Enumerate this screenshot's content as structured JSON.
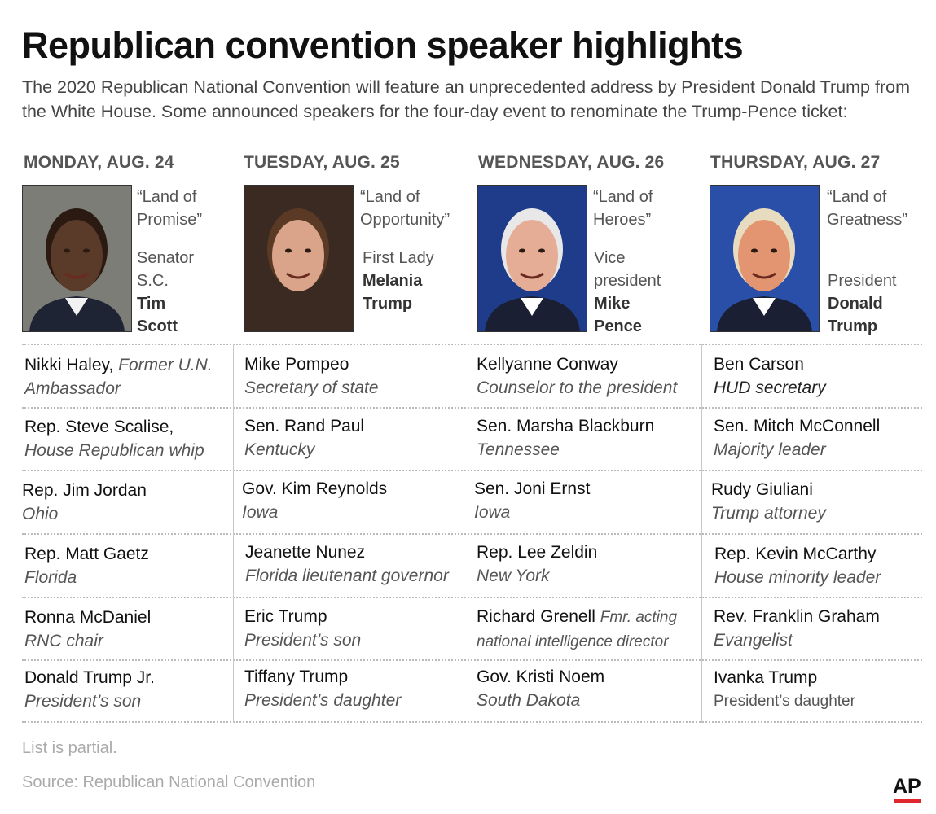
{
  "title": "Republican convention speaker highlights",
  "subtitle": "The 2020 Republican National Convention will feature an unprecedented address by President Donald Trump from the White House. Some announced speakers for the four-day event to renominate the Trump-Pence ticket:",
  "days": [
    {
      "day": "MONDAY, AUG. 24",
      "theme": "“Land of Promise”",
      "headliner_role": "Senator S.C.",
      "headliner_name": "Tim Scott",
      "photo": {
        "bg": "#7d7d78",
        "skin": "#5a3a28",
        "hair": "#2a1a12",
        "suit": "#1e2433",
        "shirt": "#f2f2f2"
      },
      "speakers": [
        {
          "name": "Nikki Haley,",
          "role": "Former U.N. Ambassador"
        },
        {
          "name": "Rep. Steve Scalise,",
          "role": "House Republican whip"
        },
        {
          "name": "Rep. Jim Jordan",
          "role": "Ohio"
        },
        {
          "name": "Rep. Matt Gaetz",
          "role": "Florida"
        },
        {
          "name": "Ronna McDaniel",
          "role": "RNC chair"
        },
        {
          "name": "Donald Trump Jr.",
          "role": "President’s son"
        }
      ]
    },
    {
      "day": "TUESDAY, AUG. 25",
      "theme": "“Land of Opportunity”",
      "headliner_role": "First Lady",
      "headliner_name": "Melania Trump",
      "photo": {
        "bg": "#3a2a22",
        "skin": "#d9a489",
        "hair": "#5a3a24",
        "suit": "#3a2a22",
        "shirt": "#3a2a22"
      },
      "speakers": [
        {
          "name": "Mike Pompeo",
          "role": "Secretary of state"
        },
        {
          "name": "Sen. Rand Paul",
          "role": "Kentucky"
        },
        {
          "name": "Gov. Kim Reynolds",
          "role": "Iowa"
        },
        {
          "name": "Jeanette Nunez",
          "role": "Florida lieutenant governor"
        },
        {
          "name": "Eric Trump",
          "role": "President’s son"
        },
        {
          "name": "Tiffany Trump",
          "role": "President’s daughter"
        }
      ]
    },
    {
      "day": "WEDNESDAY, AUG. 26",
      "theme": "“Land of Heroes”",
      "headliner_role": "Vice president",
      "headliner_name": "Mike Pence",
      "photo": {
        "bg": "#1f3c8a",
        "skin": "#e6ad96",
        "hair": "#e8e8e8",
        "suit": "#1a1f33",
        "shirt": "#ffffff"
      },
      "speakers": [
        {
          "name": "Kellyanne Conway",
          "role": "Counselor to the president"
        },
        {
          "name": "Sen. Marsha Blackburn",
          "role": "Tennessee"
        },
        {
          "name": "Sen. Joni Ernst",
          "role": "Iowa"
        },
        {
          "name": "Rep. Lee Zeldin",
          "role": "New York"
        },
        {
          "name": "Richard Grenell",
          "role": "Fmr. acting national intelligence director"
        },
        {
          "name": "Gov. Kristi Noem",
          "role": "South Dakota"
        }
      ]
    },
    {
      "day": "THURSDAY, AUG. 27",
      "theme": "“Land of Greatness”",
      "headliner_role": "President",
      "headliner_name": "Donald Trump",
      "photo": {
        "bg": "#2a4fa8",
        "skin": "#e39470",
        "hair": "#e8dcc0",
        "suit": "#1a1f33",
        "shirt": "#ffffff"
      },
      "speakers": [
        {
          "name": "Ben Carson",
          "role": "HUD secretary"
        },
        {
          "name": "Sen. Mitch McConnell",
          "role": "Majority leader"
        },
        {
          "name": "Rudy Giuliani",
          "role": "Trump attorney"
        },
        {
          "name": "Rep. Kevin McCarthy",
          "role": "House minority leader"
        },
        {
          "name": "Rev. Franklin Graham",
          "role": "Evangelist"
        },
        {
          "name": "Ivanka Trump",
          "role": "President’s daughter"
        }
      ]
    }
  ],
  "note": "List is partial.",
  "source": "Source: Republican National Convention",
  "logo": "AP"
}
